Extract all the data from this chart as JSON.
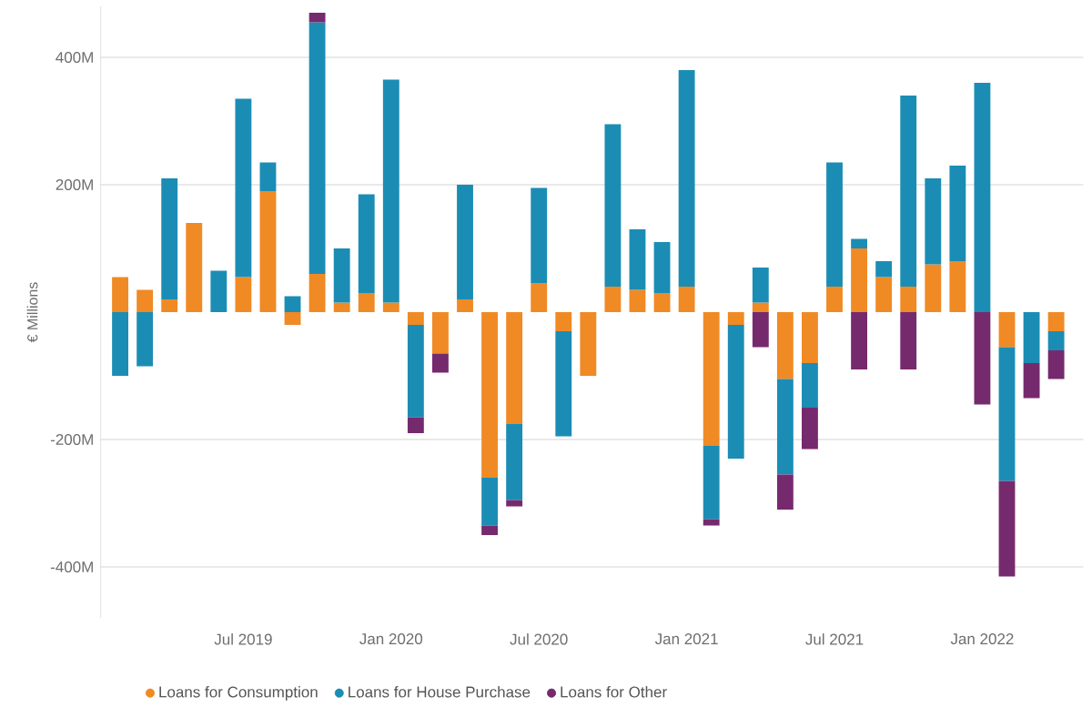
{
  "chart_data": {
    "type": "bar",
    "stacked": true,
    "categories": [
      null,
      null,
      null,
      null,
      null,
      "Jul 2019",
      null,
      null,
      null,
      null,
      null,
      "Jan 2020",
      null,
      null,
      null,
      null,
      null,
      "Jul 2020",
      null,
      null,
      null,
      null,
      null,
      "Jan 2021",
      null,
      null,
      null,
      null,
      null,
      "Jul 2021",
      null,
      null,
      null,
      null,
      null,
      "Jan 2022",
      null,
      null,
      null
    ],
    "series": [
      {
        "name": "Loans for Consumption",
        "color": "#f08a24",
        "values": [
          55,
          35,
          20,
          140,
          null,
          55,
          190,
          -20,
          60,
          15,
          30,
          15,
          -20,
          -65,
          20,
          -260,
          -175,
          45,
          -30,
          -100,
          40,
          35,
          30,
          40,
          -210,
          -20,
          15,
          -105,
          -80,
          40,
          100,
          55,
          40,
          75,
          80,
          null,
          -55,
          null,
          -30
        ]
      },
      {
        "name": "Loans for House Purchase",
        "color": "#1b8db5",
        "values": [
          -100,
          -85,
          190,
          null,
          65,
          280,
          45,
          25,
          395,
          85,
          155,
          350,
          -145,
          null,
          180,
          -75,
          -120,
          150,
          -165,
          null,
          255,
          95,
          80,
          340,
          -115,
          -210,
          55,
          -150,
          -70,
          195,
          15,
          25,
          300,
          135,
          150,
          360,
          -210,
          -80,
          -30
        ]
      },
      {
        "name": "Loans for Other",
        "color": "#762a6e",
        "values": [
          null,
          null,
          null,
          null,
          null,
          null,
          null,
          null,
          15,
          null,
          null,
          null,
          -25,
          -30,
          null,
          -15,
          -10,
          null,
          null,
          null,
          null,
          null,
          null,
          null,
          -10,
          null,
          -55,
          -55,
          -65,
          null,
          -90,
          null,
          -90,
          null,
          null,
          -145,
          -150,
          -55,
          -45
        ]
      }
    ],
    "ylim": [
      -480,
      480
    ],
    "yticks": [
      {
        "value": -400,
        "label": "-400M"
      },
      {
        "value": -200,
        "label": "-200M"
      },
      {
        "value": 200,
        "label": "200M"
      },
      {
        "value": 400,
        "label": "400M"
      }
    ],
    "ylabel": "€ Millions",
    "grid": "y",
    "legend": "bottom"
  }
}
